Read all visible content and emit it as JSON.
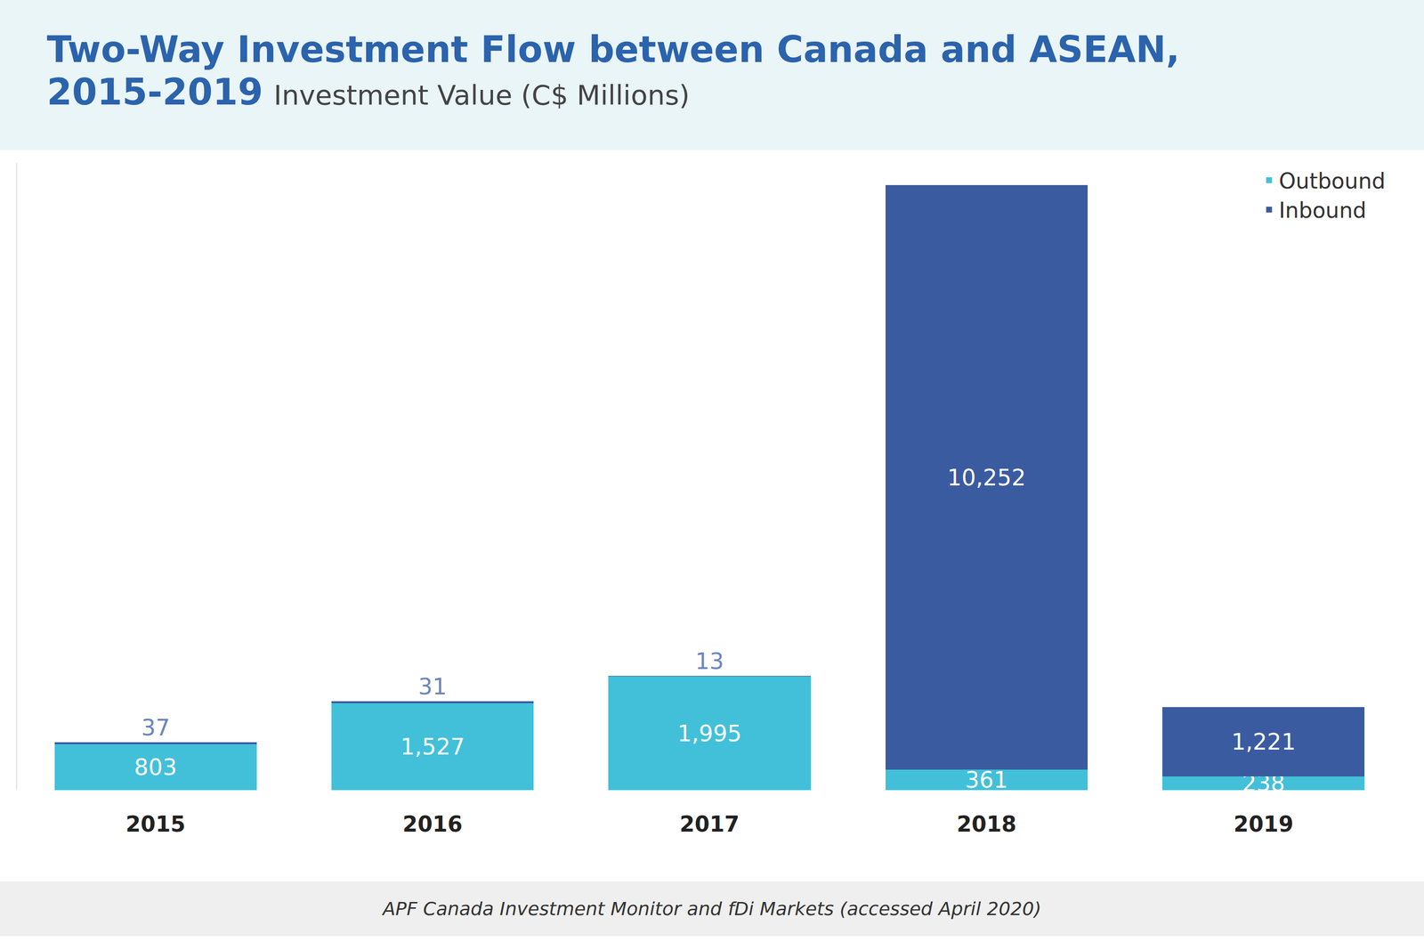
{
  "chart_data": {
    "type": "bar",
    "title": "Two-Way Investment Flow between Canada and ASEAN, 2015-2019",
    "subtitle": "Investment Value (C$ Millions)",
    "note": "APF Canada Investment Monitor and fDi Markets (accessed April 2020)",
    "categories": [
      "2015",
      "2016",
      "2017",
      "2018",
      "2019"
    ],
    "series": [
      {
        "name": "Outbound",
        "color": "#42c0d9",
        "values": [
          803,
          1527,
          1995,
          361,
          238
        ],
        "value_labels": [
          "803",
          "1,527",
          "1,995",
          "361",
          "238"
        ]
      },
      {
        "name": "Inbound",
        "color": "#3b5ba1",
        "values": [
          37,
          31,
          13,
          10252,
          1221
        ],
        "value_labels": [
          "37",
          "31",
          "13",
          "10,252",
          "1,221"
        ]
      }
    ],
    "stacked": true,
    "data_labels": true,
    "ylim": [
      0,
      11000
    ],
    "yticks": [],
    "tick_labels": "x",
    "grid": false,
    "legend": "top right"
  }
}
